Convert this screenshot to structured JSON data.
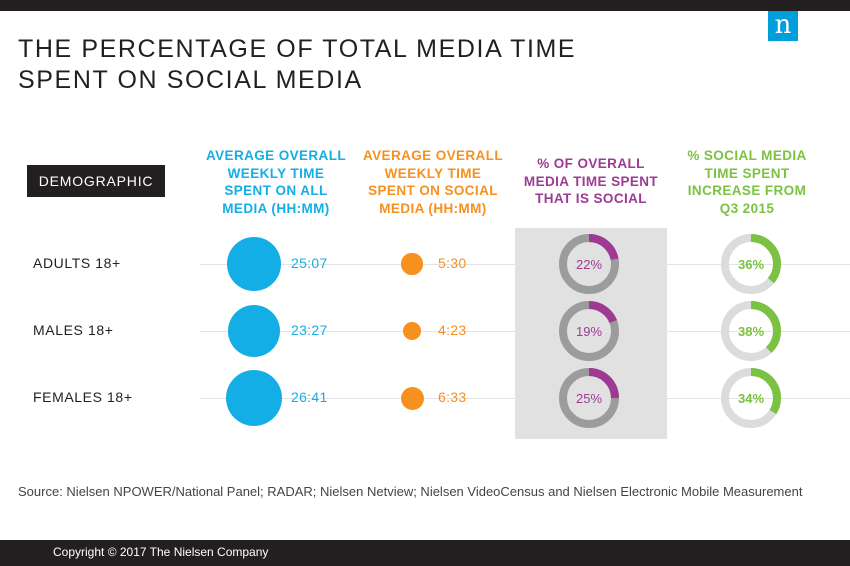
{
  "brand": {
    "logo_letter": "n",
    "logo_color": "#009fdb"
  },
  "title": {
    "line1": "THE PERCENTAGE OF TOTAL MEDIA TIME",
    "line2": "SPENT ON SOCIAL MEDIA"
  },
  "demographic_label": "DEMOGRAPHIC",
  "headers": {
    "total": {
      "lines": [
        "AVERAGE OVERALL",
        "WEEKLY TIME",
        "SPENT ON ALL",
        "MEDIA (HH:MM)"
      ],
      "color": "#14aee6"
    },
    "social": {
      "lines": [
        "AVERAGE OVERALL",
        "WEEKLY TIME",
        "SPENT ON SOCIAL",
        "MEDIA (HH:MM)"
      ],
      "color": "#f7901e"
    },
    "share": {
      "lines": [
        "% OF OVERALL",
        "MEDIA TIME SPENT",
        "THAT IS SOCIAL"
      ],
      "color": "#9e3a93"
    },
    "increase": {
      "lines": [
        "% SOCIAL MEDIA",
        "TIME SPENT",
        "INCREASE FROM",
        "Q3 2015"
      ],
      "color": "#7cc242"
    }
  },
  "chart_data": {
    "type": "table",
    "rows": [
      {
        "label": "ADULTS 18+",
        "total": "25:07",
        "social": "5:30",
        "share": "22%",
        "share_value": 22,
        "increase": "36%",
        "increase_value": 36
      },
      {
        "label": "MALES 18+",
        "total": "23:27",
        "social": "4:23",
        "share": "19%",
        "share_value": 19,
        "increase": "38%",
        "increase_value": 38
      },
      {
        "label": "FEMALES 18+",
        "total": "26:41",
        "social": "6:33",
        "share": "25%",
        "share_value": 25,
        "increase": "34%",
        "increase_value": 34
      }
    ],
    "colors": {
      "total": "#14aee6",
      "social": "#f7901e",
      "share": "#9e3a93",
      "increase": "#7cc242",
      "ring_share_base": "#9c9c9c",
      "ring_increase_base": "#dcdcdc"
    }
  },
  "source": "Source: Nielsen NPOWER/National Panel; RADAR; Nielsen Netview; Nielsen VideoCensus and Nielsen Electronic Mobile Measurement",
  "copyright": "Copyright © 2017 The Nielsen Company"
}
